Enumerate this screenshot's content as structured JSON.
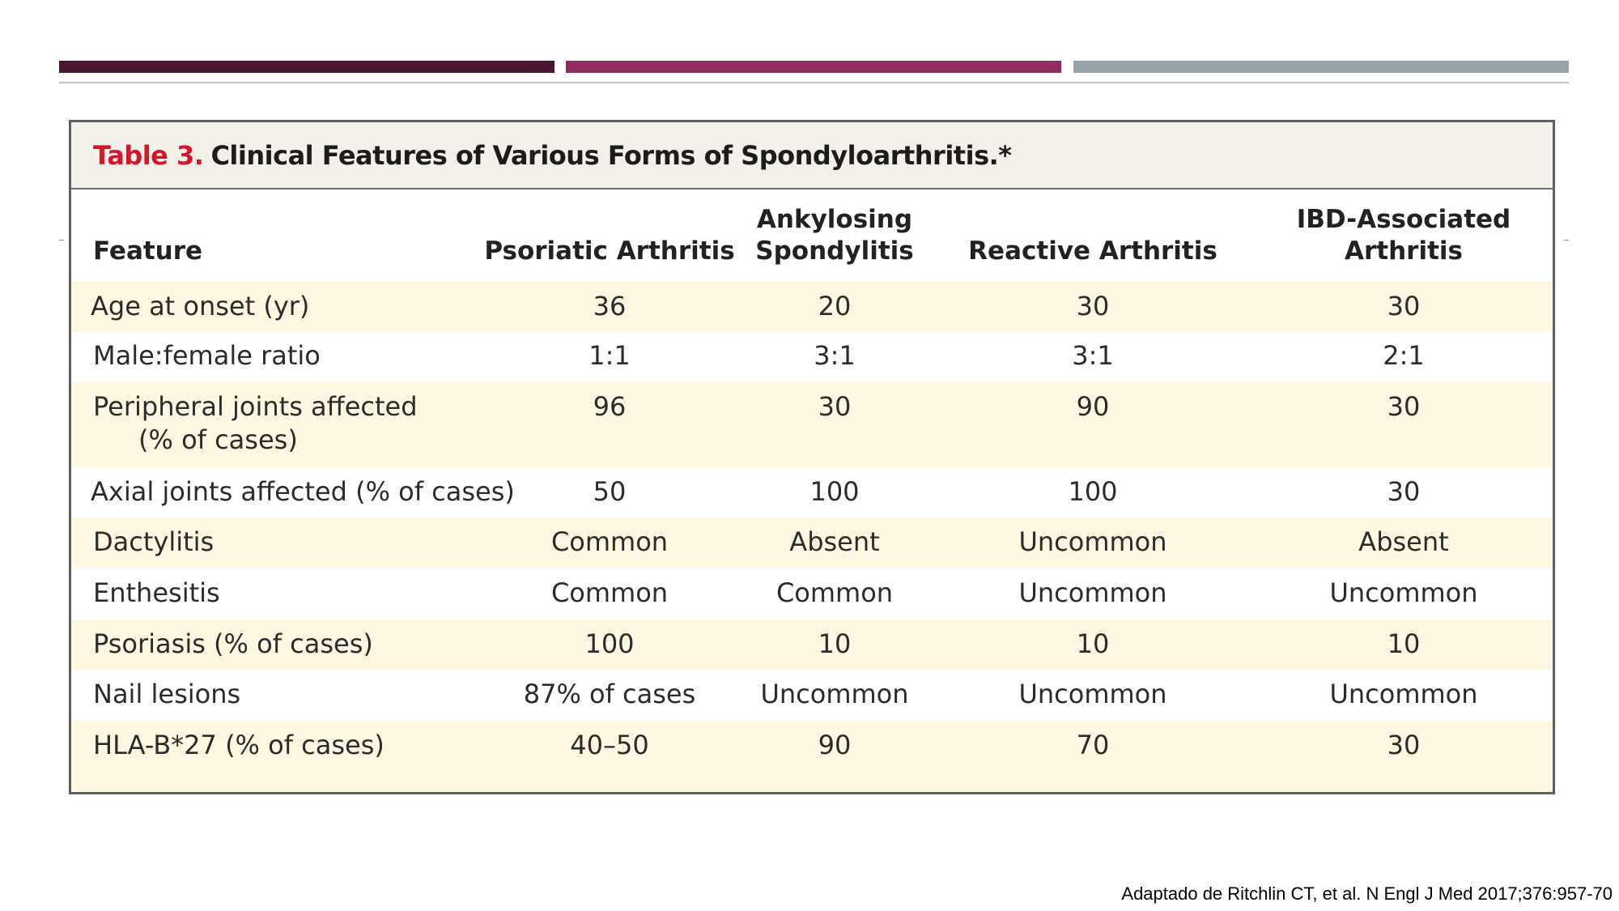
{
  "slide": {
    "bar_colors": [
      "#4a1530",
      "#922b5f",
      "#98a2a9"
    ],
    "citation": "Adaptado de Ritchlin CT, et al. N Engl J Med 2017;376:957-70"
  },
  "table": {
    "title_number": "Table 3.",
    "title_text": "Clinical Features of Various Forms of Spondyloarthritis.*",
    "title_color": "#d4162a",
    "headers": {
      "feature": "Feature",
      "psoriatic": "Psoriatic Arthritis",
      "ankylosing_line1": "Ankylosing",
      "ankylosing_line2": "Spondylitis",
      "reactive": "Reactive Arthritis",
      "ibd_line1": "IBD-Associated",
      "ibd_line2": "Arthritis"
    },
    "rows": [
      {
        "feature": "Age at onset (yr)",
        "psoriatic": "36",
        "ankylosing": "20",
        "reactive": "30",
        "ibd": "30"
      },
      {
        "feature": "Male:female ratio",
        "psoriatic": "1:1",
        "ankylosing": "3:1",
        "reactive": "3:1",
        "ibd": "2:1"
      },
      {
        "feature": "Peripheral joints affected",
        "feature_line2": "(% of cases)",
        "psoriatic": "96",
        "ankylosing": "30",
        "reactive": "90",
        "ibd": "30"
      },
      {
        "feature": "Axial joints affected (% of cases)",
        "psoriatic": "50",
        "ankylosing": "100",
        "reactive": "100",
        "ibd": "30"
      },
      {
        "feature": "Dactylitis",
        "psoriatic": "Common",
        "ankylosing": "Absent",
        "reactive": "Uncommon",
        "ibd": "Absent"
      },
      {
        "feature": "Enthesitis",
        "psoriatic": "Common",
        "ankylosing": "Common",
        "reactive": "Uncommon",
        "ibd": "Uncommon"
      },
      {
        "feature": "Psoriasis (% of cases)",
        "psoriatic": "100",
        "ankylosing": "10",
        "reactive": "10",
        "ibd": "10"
      },
      {
        "feature": "Nail lesions",
        "psoriatic": "87% of cases",
        "ankylosing": "Uncommon",
        "reactive": "Uncommon",
        "ibd": "Uncommon"
      },
      {
        "feature": "HLA-B*27 (% of cases)",
        "psoriatic": "40–50",
        "ankylosing": "90",
        "reactive": "70",
        "ibd": "30"
      }
    ]
  }
}
